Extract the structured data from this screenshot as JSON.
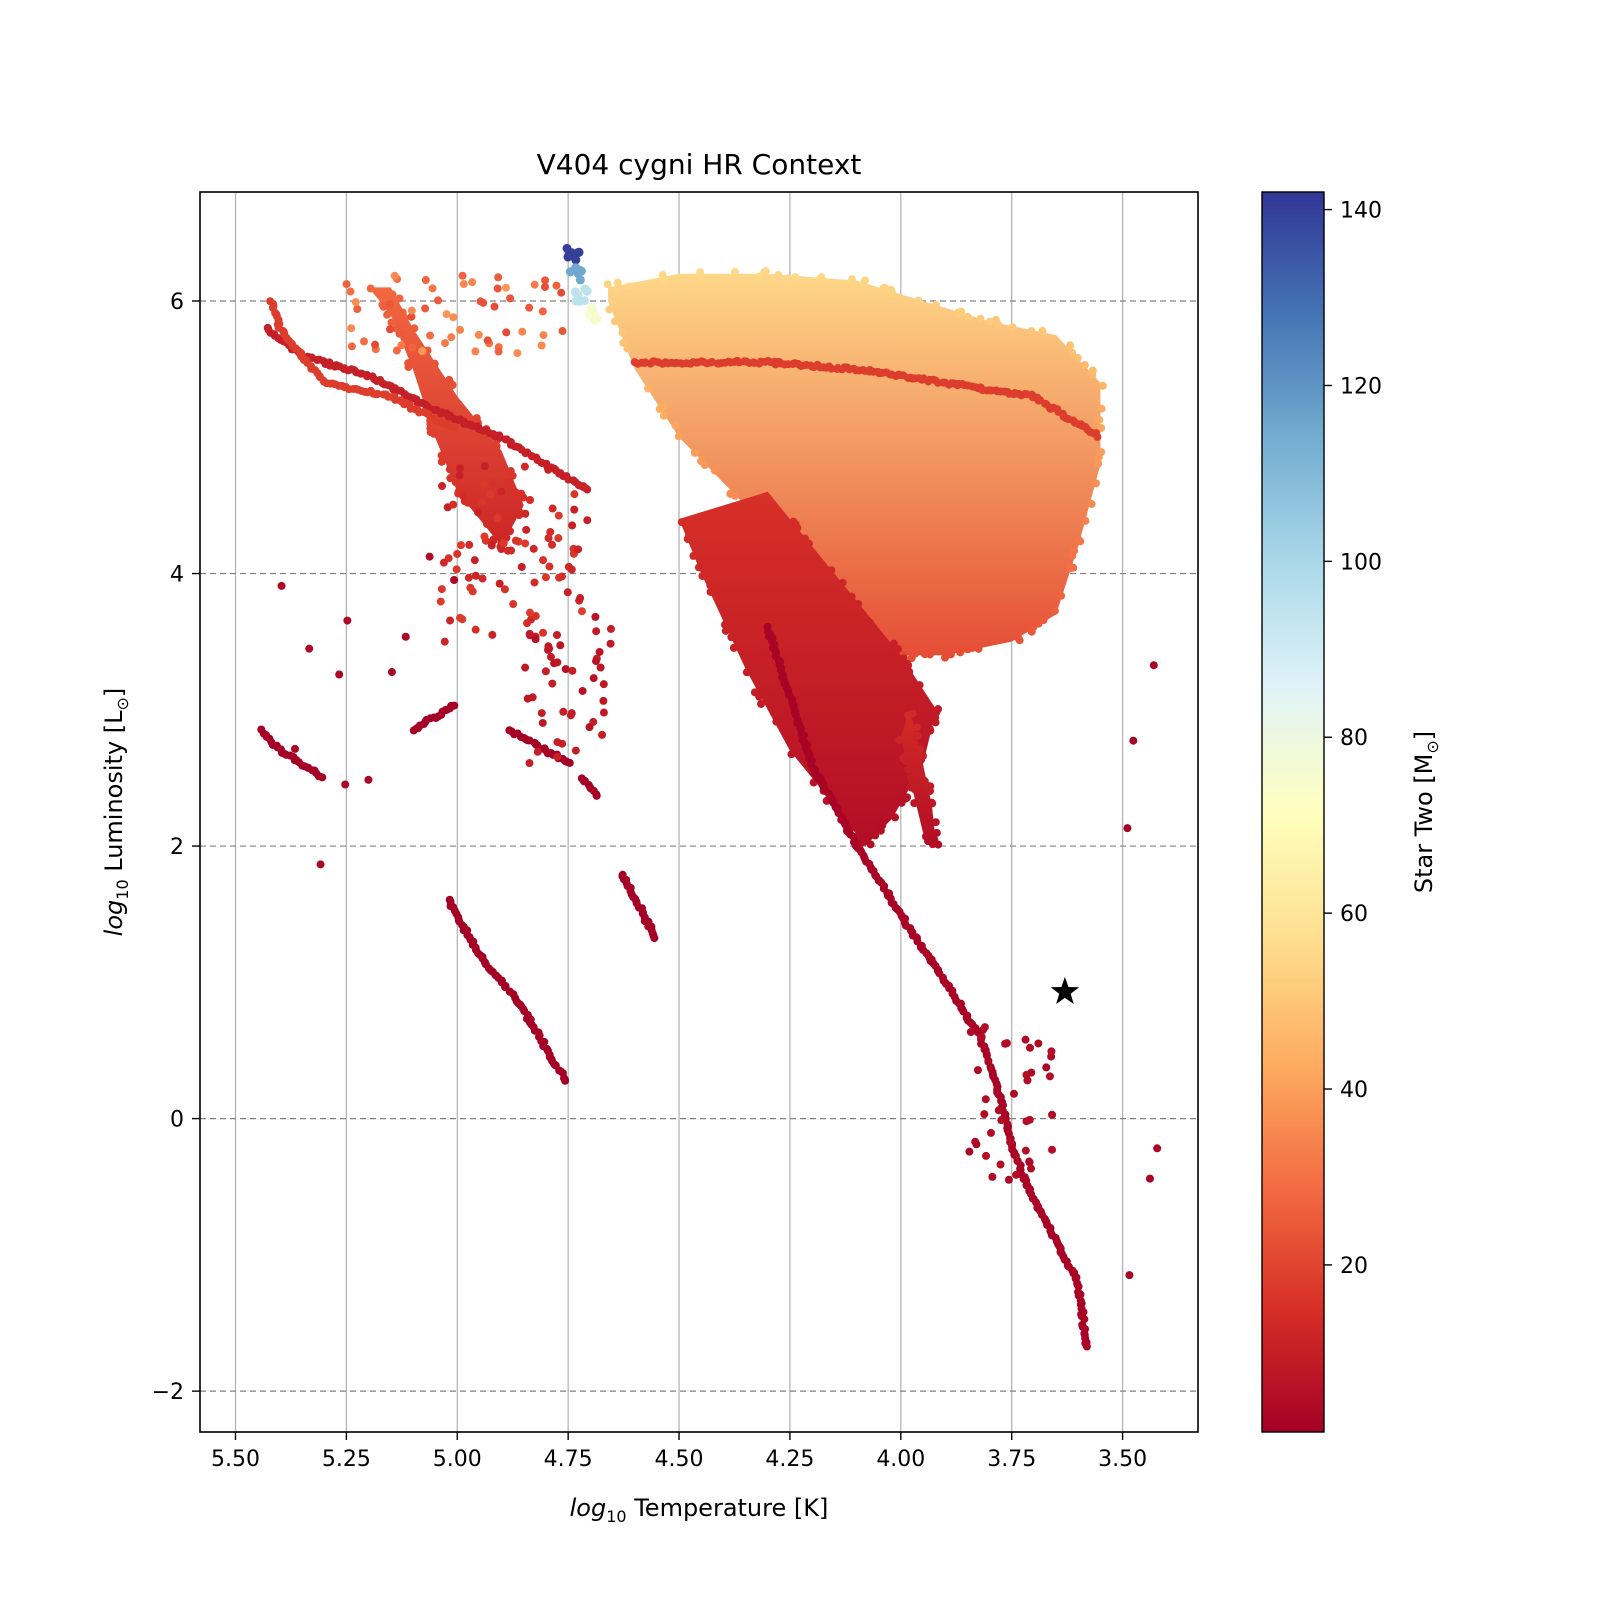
{
  "chart_data": {
    "type": "scatter",
    "title": "V404 cygni HR Context",
    "xlabel": {
      "log": "log",
      "sub": "10",
      "rest": " Temperature [K]"
    },
    "ylabel": {
      "log": "log",
      "sub": "10",
      "rest": " Luminosity [L",
      "sym": "⊙",
      "close": "]"
    },
    "xlim": [
      5.58,
      3.33
    ],
    "ylim": [
      -2.3,
      6.8
    ],
    "x_inverted": true,
    "xticks": [
      5.5,
      5.25,
      5.0,
      4.75,
      4.5,
      4.25,
      4.0,
      3.75,
      3.5
    ],
    "xtick_labels": [
      "5.50",
      "5.25",
      "5.00",
      "4.75",
      "4.50",
      "4.25",
      "4.00",
      "3.75",
      "3.50"
    ],
    "yticks": [
      -2,
      0,
      2,
      4,
      6
    ],
    "ytick_labels": [
      "−2",
      "0",
      "2",
      "4",
      "6"
    ],
    "grid": {
      "x": "solid light gray",
      "y": "dashed gray"
    },
    "colorbar": {
      "label": "Star Two [M",
      "label_sym": "⊙",
      "label_close": "]",
      "range": [
        1,
        142
      ],
      "ticks": [
        20,
        40,
        60,
        80,
        100,
        120,
        140
      ],
      "tick_labels": [
        "20",
        "40",
        "60",
        "80",
        "100",
        "120",
        "140"
      ],
      "colormap": "RdYlBu",
      "colors": [
        "#a50026",
        "#d73027",
        "#f46d43",
        "#fdae61",
        "#fee090",
        "#ffffbf",
        "#e0f3f8",
        "#abd9e9",
        "#74add1",
        "#4575b4",
        "#313695"
      ]
    },
    "marker": {
      "name": "V404 cygni",
      "shape": "star",
      "color": "#000000",
      "x": 3.63,
      "y": 0.93
    },
    "tracks": [
      {
        "name": "main-sequence-branch",
        "mass": 2,
        "points": [
          [
            4.3,
            3.6
          ],
          [
            4.2,
            2.6
          ],
          [
            4.1,
            2.0
          ],
          [
            4.0,
            1.5
          ],
          [
            3.9,
            1.0
          ],
          [
            3.82,
            0.6
          ],
          [
            3.78,
            0.2
          ],
          [
            3.75,
            -0.2
          ],
          [
            3.7,
            -0.6
          ],
          [
            3.65,
            -0.9
          ],
          [
            3.6,
            -1.2
          ],
          [
            3.58,
            -1.7
          ]
        ]
      },
      {
        "name": "helium-star-track-upper",
        "mass": 10,
        "points": [
          [
            5.43,
            5.8
          ],
          [
            5.35,
            5.6
          ],
          [
            5.2,
            5.45
          ],
          [
            5.05,
            5.2
          ],
          [
            4.9,
            5.0
          ],
          [
            4.8,
            4.8
          ],
          [
            4.7,
            4.6
          ]
        ]
      },
      {
        "name": "helium-star-track-middle",
        "mass": 18,
        "points": [
          [
            5.42,
            6.0
          ],
          [
            5.4,
            5.8
          ],
          [
            5.3,
            5.4
          ],
          [
            5.15,
            5.3
          ],
          [
            5.0,
            5.05
          ]
        ]
      },
      {
        "name": "red-giant-branch-track",
        "mass": 18,
        "points": [
          [
            4.6,
            5.55
          ],
          [
            4.3,
            5.55
          ],
          [
            4.1,
            5.5
          ],
          [
            3.9,
            5.4
          ],
          [
            3.7,
            5.3
          ],
          [
            3.55,
            5.0
          ]
        ]
      },
      {
        "name": "stripped-track-a",
        "mass": 1,
        "points": [
          [
            5.44,
            2.85
          ],
          [
            5.4,
            2.7
          ],
          [
            5.35,
            2.6
          ],
          [
            5.3,
            2.5
          ]
        ]
      },
      {
        "name": "stripped-track-b",
        "mass": 1,
        "points": [
          [
            5.02,
            1.6
          ],
          [
            4.95,
            1.2
          ],
          [
            4.85,
            0.8
          ],
          [
            4.78,
            0.4
          ],
          [
            4.75,
            0.25
          ]
        ]
      },
      {
        "name": "stripped-track-c",
        "mass": 1,
        "points": [
          [
            5.1,
            2.85
          ],
          [
            5.05,
            2.95
          ],
          [
            5.0,
            3.05
          ]
        ]
      },
      {
        "name": "stripped-track-d",
        "mass": 1,
        "points": [
          [
            4.88,
            2.85
          ],
          [
            4.8,
            2.7
          ],
          [
            4.74,
            2.6
          ]
        ]
      },
      {
        "name": "stripped-track-e",
        "mass": 1,
        "points": [
          [
            4.63,
            1.8
          ],
          [
            4.58,
            1.5
          ],
          [
            4.55,
            1.3
          ]
        ]
      },
      {
        "name": "stripped-track-f",
        "mass": 1,
        "points": [
          [
            4.72,
            2.5
          ],
          [
            4.68,
            2.35
          ]
        ]
      }
    ],
    "regions": [
      {
        "name": "upper-cloud",
        "mass_top": 55,
        "mass_bottom": 22,
        "polygon": [
          [
            4.66,
            6.1
          ],
          [
            4.5,
            6.2
          ],
          [
            4.3,
            6.2
          ],
          [
            4.1,
            6.15
          ],
          [
            3.95,
            6.0
          ],
          [
            3.8,
            5.85
          ],
          [
            3.65,
            5.75
          ],
          [
            3.55,
            5.4
          ],
          [
            3.55,
            4.8
          ],
          [
            3.6,
            4.2
          ],
          [
            3.65,
            3.7
          ],
          [
            3.75,
            3.5
          ],
          [
            3.9,
            3.4
          ],
          [
            4.0,
            3.4
          ],
          [
            4.1,
            3.6
          ],
          [
            4.2,
            4.0
          ],
          [
            4.35,
            4.5
          ],
          [
            4.5,
            5.0
          ],
          [
            4.6,
            5.5
          ],
          [
            4.66,
            6.0
          ]
        ]
      },
      {
        "name": "lower-cloud",
        "mass_top": 15,
        "mass_bottom": 5,
        "polygon": [
          [
            4.3,
            4.6
          ],
          [
            4.15,
            4.0
          ],
          [
            4.0,
            3.4
          ],
          [
            3.92,
            3.0
          ],
          [
            3.95,
            2.6
          ],
          [
            4.02,
            2.2
          ],
          [
            4.08,
            2.0
          ],
          [
            4.15,
            2.3
          ],
          [
            4.25,
            2.7
          ],
          [
            4.35,
            3.3
          ],
          [
            4.45,
            4.0
          ],
          [
            4.5,
            4.4
          ]
        ]
      },
      {
        "name": "left-blob",
        "mass_top": 28,
        "mass_bottom": 12,
        "polygon": [
          [
            5.2,
            6.1
          ],
          [
            5.15,
            5.9
          ],
          [
            5.1,
            5.5
          ],
          [
            5.05,
            5.0
          ],
          [
            5.0,
            4.6
          ],
          [
            4.9,
            4.2
          ],
          [
            4.85,
            4.5
          ],
          [
            4.9,
            4.9
          ],
          [
            5.0,
            5.3
          ],
          [
            5.1,
            5.8
          ],
          [
            5.15,
            6.1
          ]
        ]
      },
      {
        "name": "lower-spur",
        "mass_top": 14,
        "mass_bottom": 5,
        "polygon": [
          [
            3.98,
            3.0
          ],
          [
            3.95,
            2.6
          ],
          [
            3.93,
            2.3
          ],
          [
            3.92,
            2.0
          ],
          [
            3.95,
            2.1
          ],
          [
            3.98,
            2.5
          ],
          [
            4.0,
            2.8
          ]
        ]
      }
    ],
    "scatter_clusters": [
      {
        "name": "upper-left-scatter",
        "mass": 14,
        "count": 90,
        "xrange": [
          4.7,
          5.05
        ],
        "yrange": [
          3.5,
          4.8
        ]
      },
      {
        "name": "mid-scatter",
        "mass": 8,
        "count": 45,
        "xrange": [
          4.65,
          4.85
        ],
        "yrange": [
          2.6,
          3.7
        ]
      },
      {
        "name": "top-band",
        "mass": 30,
        "count": 60,
        "xrange": [
          4.75,
          5.25
        ],
        "yrange": [
          5.6,
          6.2
        ]
      },
      {
        "name": "sparse-lower-left",
        "mass": 3,
        "count": 12,
        "xrange": [
          5.0,
          5.45
        ],
        "yrange": [
          1.8,
          4.2
        ]
      },
      {
        "name": "lower-right-scatter",
        "mass": 4,
        "count": 40,
        "xrange": [
          3.65,
          3.85
        ],
        "yrange": [
          -0.5,
          0.7
        ]
      },
      {
        "name": "far-right-dots",
        "mass": 2,
        "count": 6,
        "xrange": [
          3.42,
          3.5
        ],
        "yrange": [
          -1.9,
          4.3
        ]
      }
    ],
    "peak_tip": {
      "name": "high-mass-tip",
      "points": [
        [
          4.74,
          6.35
        ],
        [
          4.73,
          6.2
        ],
        [
          4.72,
          6.05
        ],
        [
          4.7,
          5.9
        ]
      ],
      "masses": [
        140,
        115,
        95,
        75
      ]
    }
  }
}
